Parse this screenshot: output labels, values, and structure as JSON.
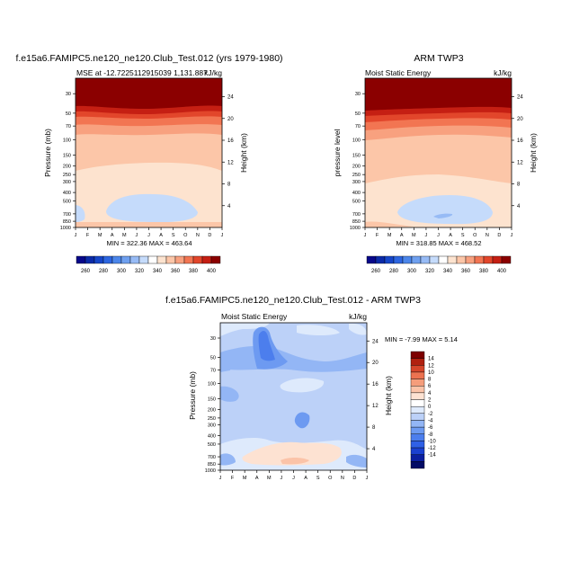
{
  "left_title": "f.e15a6.FAMIPC5.ne120_ne120.Club_Test.012 (yrs 1979-1980)",
  "right_title": "ARM TWP3",
  "bottom_title": "f.e15a6.FAMIPC5.ne120_ne120.Club_Test.012 - ARM TWP3",
  "colors": {
    "abs_levels": [
      "#08088a",
      "#0b2aa8",
      "#1646c8",
      "#2d66e0",
      "#4c86ea",
      "#6fa0ef",
      "#97bbf5",
      "#c5dbfb",
      "#ffffff",
      "#fde3cf",
      "#fcc6a8",
      "#f8a17f",
      "#f27552",
      "#e2462b",
      "#c51f13",
      "#8b0000"
    ],
    "diff_levels": [
      "#030b66",
      "#0b1fa0",
      "#1a40d0",
      "#2f60e6",
      "#4c7eed",
      "#6d9af1",
      "#93b6f5",
      "#bcd1f8",
      "#deeafc",
      "#ffffff",
      "#fde2d2",
      "#fbc3a8",
      "#f59d7b",
      "#ec7250",
      "#d5452a",
      "#b0200f",
      "#7d0000"
    ]
  },
  "chart_data": [
    {
      "type": "heatmap",
      "panel": "model",
      "title": "MSE at -12.7225112915039​1,131.887",
      "title_display": "MSE at -12.7225112915039 1,131.887",
      "units": "kJ/kg",
      "ylabel": "Pressure (mb)",
      "ylabel_right": "Height (km)",
      "x_ticks": [
        "J",
        "F",
        "M",
        "A",
        "M",
        "J",
        "J",
        "A",
        "S",
        "O",
        "N",
        "D",
        "J"
      ],
      "p_ticks": [
        30,
        50,
        70,
        100,
        150,
        200,
        250,
        300,
        400,
        500,
        700,
        850,
        1000
      ],
      "height_ticks": [
        24,
        20,
        16,
        12,
        8,
        4
      ],
      "contour_levels": [
        260,
        280,
        300,
        320,
        340,
        360,
        380,
        400
      ],
      "min": 322.36,
      "max": 463.64,
      "stats_text": "MIN = 322.36  MAX = 463.64"
    },
    {
      "type": "heatmap",
      "panel": "obs",
      "title": "Moist Static Energy",
      "units": "kJ/kg",
      "ylabel": "pressure level",
      "ylabel_right": "Height (km)",
      "x_ticks": [
        "J",
        "F",
        "M",
        "A",
        "M",
        "J",
        "J",
        "A",
        "S",
        "O",
        "N",
        "D",
        "J"
      ],
      "p_ticks": [
        30,
        50,
        70,
        100,
        150,
        200,
        250,
        300,
        400,
        500,
        700,
        850,
        1000
      ],
      "height_ticks": [
        24,
        20,
        16,
        12,
        8,
        4
      ],
      "contour_levels": [
        260,
        280,
        300,
        320,
        340,
        360,
        380,
        400
      ],
      "min": 318.85,
      "max": 468.52,
      "stats_text": "MIN = 318.85  MAX = 468.52"
    },
    {
      "type": "heatmap",
      "panel": "difference",
      "title": "Moist Static Energy",
      "units": "kJ/kg",
      "ylabel": "Pressure (mb)",
      "ylabel_right": "Height (km)",
      "x_ticks": [
        "J",
        "F",
        "M",
        "A",
        "M",
        "J",
        "J",
        "A",
        "S",
        "O",
        "N",
        "D",
        "J"
      ],
      "p_ticks": [
        30,
        50,
        70,
        100,
        150,
        200,
        250,
        300,
        400,
        500,
        700,
        850,
        1000
      ],
      "height_ticks": [
        24,
        20,
        16,
        12,
        8,
        4
      ],
      "contour_levels": [
        -14,
        -12,
        -10,
        -8,
        -6,
        -4,
        -2,
        0,
        2,
        4,
        6,
        8,
        10,
        12,
        14
      ],
      "min": -7.99,
      "max": 5.14,
      "stats_text": "MIN =  -7.99 MAX =   5.14"
    }
  ]
}
